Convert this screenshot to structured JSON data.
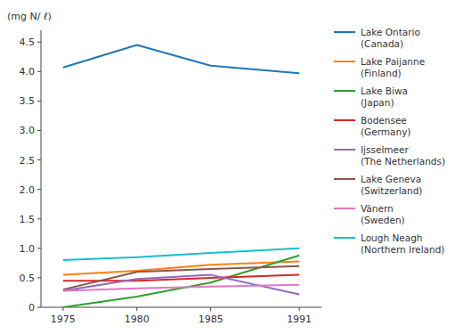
{
  "chart_data": {
    "type": "line",
    "y_label": "(mg N/ ℓ)",
    "x": [
      1975,
      1980,
      1985,
      1991
    ],
    "xlim": [
      1973.5,
      1992.5
    ],
    "xticks": [
      1975,
      1980,
      1985,
      1991
    ],
    "ylim": [
      0,
      4.7
    ],
    "yticks": [
      0,
      0.5,
      {
        "value": 1.0,
        "label": "1.0"
      },
      1.5,
      {
        "value": 2.0,
        "label": "2.0"
      },
      2.5,
      {
        "value": 3.0,
        "label": "3.0"
      },
      3.5,
      {
        "value": 4.0,
        "label": "4.0"
      },
      4.5
    ],
    "grid": false,
    "legend": "right",
    "series": [
      {
        "name": "Lake Ontario\n(Canada)",
        "values": [
          4.07,
          4.45,
          4.1,
          3.97
        ]
      },
      {
        "name": "Lake Paijanne\n(Finland)",
        "values": [
          0.55,
          0.62,
          0.72,
          0.78
        ]
      },
      {
        "name": "Lake Biwa\n(Japan)",
        "values": [
          0.0,
          0.18,
          0.42,
          0.88
        ]
      },
      {
        "name": "Bodensee\n(Germany)",
        "values": [
          0.45,
          0.45,
          0.5,
          0.55
        ]
      },
      {
        "name": "Ijsselmeer\n(The Netherlands)",
        "values": [
          0.28,
          0.48,
          0.55,
          0.22
        ]
      },
      {
        "name": "Lake Geneva\n(Switzerland)",
        "values": [
          0.3,
          0.6,
          0.65,
          0.7
        ]
      },
      {
        "name": "Vänern\n(Sweden)",
        "values": [
          0.28,
          0.32,
          0.35,
          0.38
        ]
      },
      {
        "name": "Lough Neagh\n(Northern Ireland)",
        "values": [
          0.8,
          0.85,
          0.92,
          1.0
        ]
      }
    ]
  }
}
